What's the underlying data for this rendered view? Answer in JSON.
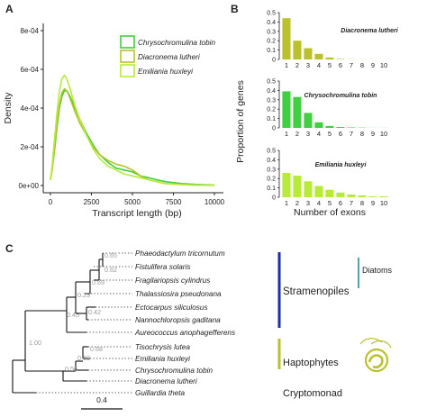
{
  "colors": {
    "chrysochromulina": "#3fcf3f",
    "diacronema": "#b9c22a",
    "emiliania": "#b8ea3a",
    "stramenopiles": "#1f2fa8",
    "diatoms": "#2a8b8b",
    "haptophytes": "#b9c22a",
    "cryptomonad": "#3fcf3f",
    "tree": "#111111",
    "support": "#9a9a9a"
  },
  "panel_labels": {
    "a": "A",
    "b": "B",
    "c": "C"
  },
  "chart_data": [
    {
      "type": "line",
      "xlabel": "Transcript length (bp)",
      "ylabel": "Density",
      "xlim": [
        0,
        10000
      ],
      "ylim": [
        0,
        0.0008
      ],
      "x_ticks": [
        "0",
        "2500",
        "5000",
        "7500",
        "10000"
      ],
      "x_tick_values": [
        0,
        2500,
        5000,
        7500,
        10000
      ],
      "y_ticks": [
        "0e+00",
        "2e-04",
        "4e-04",
        "6e-04",
        "8e-04"
      ],
      "y_tick_values": [
        0,
        0.0002,
        0.0004,
        0.0006,
        0.0008
      ],
      "legend_position": "top-right",
      "series": [
        {
          "name": "Chrysochromulina tobin",
          "color_key": "chrysochromulina",
          "x": [
            0,
            100,
            250,
            400,
            550,
            700,
            850,
            1000,
            1200,
            1500,
            1800,
            2200,
            2600,
            3000,
            3500,
            4000,
            4500,
            5000,
            5500,
            6000,
            6500,
            7000,
            8000,
            9000,
            10000
          ],
          "y": [
            3e-05,
            8e-05,
            0.00018,
            0.0003,
            0.0004,
            0.00046,
            0.00049,
            0.00049,
            0.00046,
            0.0004,
            0.00034,
            0.00027,
            0.00021,
            0.00016,
            0.00012,
            9e-05,
            8e-05,
            7e-05,
            5e-05,
            4e-05,
            3e-05,
            2e-05,
            1e-05,
            5e-06,
            2e-06
          ]
        },
        {
          "name": "Diacronema lutheri",
          "color_key": "diacronema",
          "x": [
            0,
            100,
            250,
            400,
            550,
            700,
            850,
            1000,
            1200,
            1500,
            1800,
            2200,
            2600,
            3000,
            3500,
            4000,
            4500,
            5000,
            5500,
            6000,
            6500,
            7000,
            8000,
            9000,
            10000
          ],
          "y": [
            3e-05,
            8e-05,
            0.0002,
            0.00032,
            0.00042,
            0.00048,
            0.0005,
            0.00049,
            0.00045,
            0.00038,
            0.00032,
            0.00026,
            0.0002,
            0.00016,
            0.00013,
            0.00011,
            0.0001,
            8e-05,
            5e-05,
            3e-05,
            2e-05,
            1e-05,
            5e-06,
            2e-06,
            1e-06
          ]
        },
        {
          "name": "Emiliania huxleyi",
          "color_key": "emiliania",
          "x": [
            0,
            100,
            250,
            400,
            550,
            700,
            850,
            1000,
            1200,
            1500,
            1800,
            2200,
            2600,
            3000,
            3500,
            4000,
            4500,
            5000,
            5500,
            6000,
            6500,
            7000,
            8000,
            9000,
            10000
          ],
          "y": [
            3e-05,
            0.0001,
            0.00024,
            0.00038,
            0.00049,
            0.00055,
            0.00057,
            0.00055,
            0.0005,
            0.00041,
            0.00034,
            0.00026,
            0.00019,
            0.00014,
            0.0001,
            8e-05,
            6e-05,
            5e-05,
            4e-05,
            3e-05,
            2e-05,
            1e-05,
            5e-06,
            2e-06,
            1e-06
          ]
        }
      ]
    },
    {
      "type": "bar",
      "xlabel": "Number of exons",
      "ylabel": "Proportion of genes",
      "ylim": [
        0,
        0.5
      ],
      "categories": [
        "1",
        "2",
        "3",
        "4",
        "5",
        "6",
        "7",
        "8",
        "9",
        "10"
      ],
      "y_ticks": [
        "0",
        "0.1",
        "0.2",
        "0.3",
        "0.4",
        "0.5"
      ],
      "y_tick_values": [
        0,
        0.1,
        0.2,
        0.3,
        0.4,
        0.5
      ],
      "series": [
        {
          "name": "Diacronema lutheri",
          "color_key": "diacronema",
          "values": [
            0.44,
            0.2,
            0.12,
            0.06,
            0.02,
            0.005,
            0.002,
            0.001,
            0.001,
            0.0
          ]
        },
        {
          "name": "Chrysochromulina tobin",
          "color_key": "chrysochromulina",
          "values": [
            0.39,
            0.33,
            0.16,
            0.06,
            0.02,
            0.01,
            0.005,
            0.003,
            0.001,
            0.001
          ]
        },
        {
          "name": "Emiliania huxleyi",
          "color_key": "emiliania",
          "values": [
            0.26,
            0.23,
            0.17,
            0.12,
            0.08,
            0.05,
            0.03,
            0.02,
            0.01,
            0.01
          ]
        }
      ]
    }
  ],
  "tree": {
    "scale_label": "0.4",
    "taxa": [
      "Phaeodactylum tricornutum",
      "Fistulifera solaris",
      "Fragilariopsis cylindrus",
      "Thalassiosira pseudonana",
      "Ectocarpus siliculosus",
      "Nannochloropsis gaditana",
      "Aureococcus anophagefferens",
      "Tisochrysis lutea",
      "Emiliania huxleyi",
      "Chrysochromulina tobin",
      "Diacronema lutheri",
      "Guillardia theta"
    ],
    "supports": [
      "0.65",
      "0.62",
      "0.69",
      "0.23",
      "0.42",
      "0.45",
      "1.00",
      "0.68",
      "0.69",
      "0.56"
    ],
    "groups": {
      "stramenopiles": "Stramenopiles",
      "diatoms": "Diatoms",
      "haptophytes": "Haptophytes",
      "cryptomonad": "Cryptomonad"
    }
  }
}
